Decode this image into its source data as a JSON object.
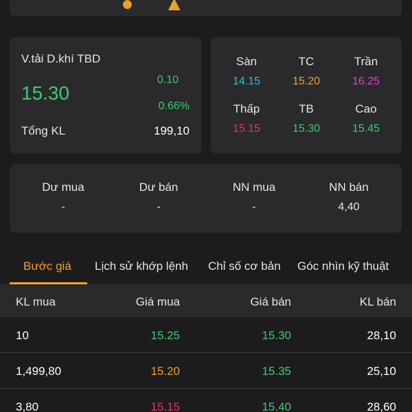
{
  "colors": {
    "up": "#3dcc6a",
    "ref": "#f0a020",
    "ceiling": "#e040e0",
    "floor": "#19c8e6",
    "down": "#e8345a",
    "accent": "#f0a020"
  },
  "summary": {
    "name": "V.tải D.khí TBD",
    "price": "15.30",
    "change": "0.10",
    "change_pct": "0.66%",
    "volume_label": "Tổng KL",
    "volume_value": "199,10"
  },
  "levels": [
    {
      "label": "Sàn",
      "value": "14.15",
      "color": "#19c8e6"
    },
    {
      "label": "TC",
      "value": "15.20",
      "color": "#f0a020"
    },
    {
      "label": "Trần",
      "value": "16.25",
      "color": "#e040e0"
    },
    {
      "label": "Thấp",
      "value": "15.15",
      "color": "#e8345a"
    },
    {
      "label": "TB",
      "value": "15.30",
      "color": "#3dcc6a"
    },
    {
      "label": "Cao",
      "value": "15.45",
      "color": "#3dcc6a"
    }
  ],
  "foreign": [
    {
      "label": "Dư mua",
      "value": "-"
    },
    {
      "label": "Dư bán",
      "value": "-"
    },
    {
      "label": "NN mua",
      "value": "-"
    },
    {
      "label": "NN bán",
      "value": "4,40"
    }
  ],
  "tabs": [
    {
      "label": "Bước giá",
      "active": true
    },
    {
      "label": "Lịch sử khớp lệnh",
      "active": false
    },
    {
      "label": "Chỉ số cơ bản",
      "active": false
    },
    {
      "label": "Góc nhìn kỹ thuật",
      "active": false
    }
  ],
  "table": {
    "headers": [
      "KL mua",
      "Giá mua",
      "Giá bán",
      "KL bán"
    ],
    "rows": [
      {
        "bid_vol": "10",
        "bid": "15.25",
        "bid_color": "#3dcc6a",
        "ask": "15.30",
        "ask_color": "#3dcc6a",
        "ask_vol": "28,10"
      },
      {
        "bid_vol": "1,499,80",
        "bid": "15.20",
        "bid_color": "#f0a020",
        "ask": "15.35",
        "ask_color": "#3dcc6a",
        "ask_vol": "25,10"
      },
      {
        "bid_vol": "3,80",
        "bid": "15.15",
        "bid_color": "#e8345a",
        "ask": "15.40",
        "ask_color": "#3dcc6a",
        "ask_vol": "28,60"
      }
    ]
  }
}
